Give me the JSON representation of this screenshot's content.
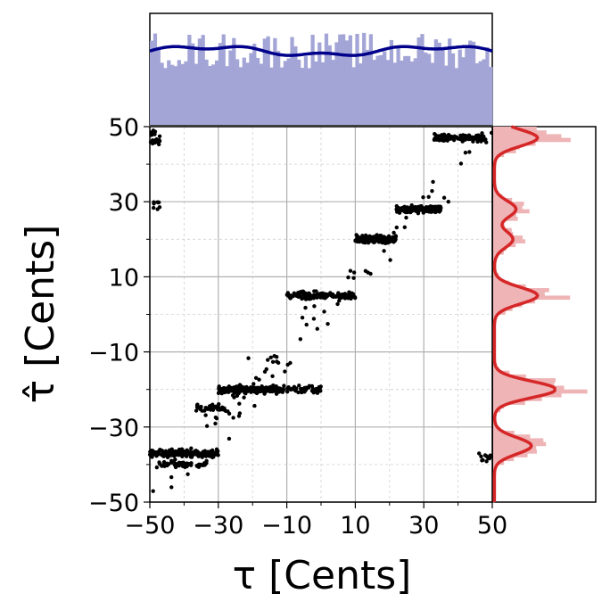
{
  "chart_data": {
    "type": "scatter",
    "title": "",
    "xlabel": "τ [Cents]",
    "ylabel": "τ̂ [Cents]",
    "xlim": [
      -50,
      50
    ],
    "ylim": [
      -50,
      50
    ],
    "x_ticks": [
      -50,
      -30,
      -10,
      10,
      30,
      50
    ],
    "x_tick_labels": [
      "−50",
      "−30",
      "−10",
      "10",
      "30",
      "50"
    ],
    "y_ticks": [
      -50,
      -30,
      -10,
      10,
      30,
      50
    ],
    "y_tick_labels": [
      "−50",
      "−30",
      "−10",
      "10",
      "30",
      "50"
    ],
    "grid": "major solid, minor dashed",
    "scatter_color": "#000000",
    "clusters": [
      {
        "x_range": [
          -50,
          -30
        ],
        "y": -37,
        "n": 180
      },
      {
        "x_range": [
          -48,
          -33
        ],
        "y": -40,
        "n": 50
      },
      {
        "x_range": [
          -30,
          -12
        ],
        "y": -20,
        "n": 180
      },
      {
        "x_range": [
          -12,
          0
        ],
        "y": -20,
        "n": 60
      },
      {
        "x_range": [
          -37,
          -28
        ],
        "y": -25,
        "n": 40
      },
      {
        "x_range": [
          -10,
          10
        ],
        "y": 5,
        "n": 160
      },
      {
        "x_range": [
          10,
          22
        ],
        "y": 20,
        "n": 150
      },
      {
        "x_range": [
          22,
          35
        ],
        "y": 28,
        "n": 140
      },
      {
        "x_range": [
          33,
          48
        ],
        "y": 47,
        "n": 120
      }
    ],
    "top_histogram": {
      "color": "#a3a5d6",
      "kde_color": "#00008b",
      "bins": 100,
      "distribution": "approximately uniform"
    },
    "right_histogram": {
      "color": "#eeb4b6",
      "kde_color": "#d62728",
      "peaks": [
        47,
        28,
        20,
        5,
        -20,
        -35
      ]
    }
  }
}
